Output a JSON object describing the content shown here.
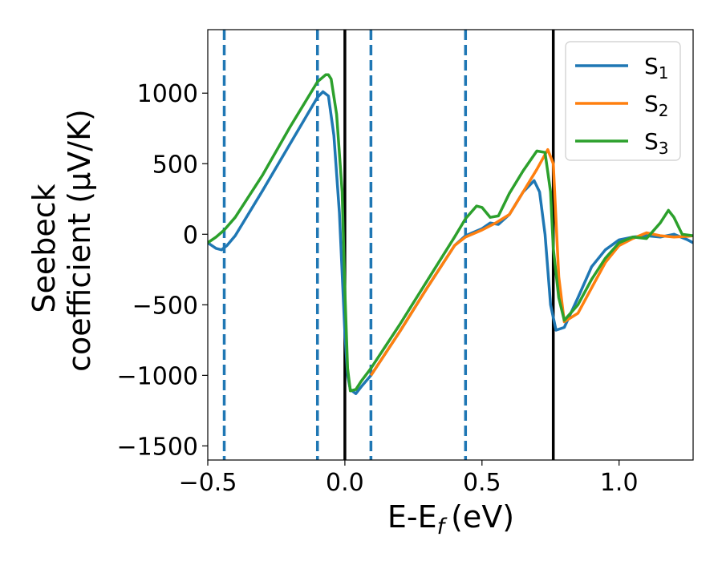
{
  "chart_data": {
    "type": "line",
    "title": "",
    "xlabel": "E-E",
    "xlabel_sub": "f",
    "xlabel_unit": "(eV)",
    "ylabel_line1": "Seebeck",
    "ylabel_line2": "coefficient  (μV/K)",
    "xlim": [
      -0.5,
      1.27
    ],
    "ylim": [
      -1600,
      1450
    ],
    "x_ticks": [
      -0.5,
      0.0,
      0.5,
      1.0
    ],
    "x_tick_labels": [
      "−0.5",
      "0.0",
      "0.5",
      "1.0"
    ],
    "y_ticks": [
      -1500,
      -1000,
      -500,
      0,
      500,
      1000
    ],
    "y_tick_labels": [
      "−1500",
      "−1000",
      "−500",
      "0",
      "500",
      "1000"
    ],
    "vlines_solid": [
      0.0,
      0.76
    ],
    "vlines_dashed": [
      -0.44,
      -0.1,
      0.095,
      0.44
    ],
    "legend": {
      "position": "top-right"
    },
    "series": [
      {
        "name": "S",
        "sub": "1",
        "color": "#1f77b4",
        "x": [
          -0.5,
          -0.47,
          -0.45,
          -0.43,
          -0.4,
          -0.3,
          -0.2,
          -0.1,
          -0.08,
          -0.06,
          -0.04,
          -0.02,
          0.0,
          0.01,
          0.02,
          0.04,
          0.06,
          0.095,
          0.2,
          0.3,
          0.4,
          0.44,
          0.5,
          0.53,
          0.56,
          0.6,
          0.65,
          0.69,
          0.71,
          0.73,
          0.75,
          0.77,
          0.8,
          0.85,
          0.9,
          0.95,
          1.0,
          1.05,
          1.1,
          1.15,
          1.2,
          1.25,
          1.27
        ],
        "y": [
          -60,
          -100,
          -110,
          -80,
          -10,
          310,
          640,
          970,
          1010,
          980,
          700,
          150,
          -700,
          -1000,
          -1100,
          -1130,
          -1080,
          -1000,
          -690,
          -380,
          -80,
          -10,
          40,
          80,
          70,
          140,
          300,
          380,
          300,
          0,
          -500,
          -680,
          -660,
          -450,
          -230,
          -110,
          -40,
          -20,
          -10,
          -20,
          0,
          -40,
          -60
        ]
      },
      {
        "name": "S",
        "sub": "2",
        "color": "#ff7f0e",
        "x": [
          0.095,
          0.2,
          0.3,
          0.4,
          0.44,
          0.5,
          0.55,
          0.6,
          0.65,
          0.7,
          0.74,
          0.76,
          0.78,
          0.8,
          0.85,
          0.9,
          0.95,
          1.0,
          1.05,
          1.1,
          1.15,
          1.2,
          1.25,
          1.27
        ],
        "y": [
          -1000,
          -690,
          -380,
          -80,
          -20,
          30,
          80,
          140,
          300,
          460,
          600,
          500,
          -300,
          -620,
          -560,
          -380,
          -200,
          -80,
          -30,
          10,
          -10,
          -20,
          -15,
          -10
        ]
      },
      {
        "name": "S",
        "sub": "3",
        "color": "#2ca02c",
        "x": [
          -0.5,
          -0.47,
          -0.44,
          -0.4,
          -0.3,
          -0.2,
          -0.1,
          -0.07,
          -0.06,
          -0.05,
          -0.03,
          -0.01,
          0.0,
          0.01,
          0.02,
          0.04,
          0.06,
          0.095,
          0.2,
          0.3,
          0.4,
          0.44,
          0.48,
          0.5,
          0.53,
          0.56,
          0.6,
          0.65,
          0.7,
          0.73,
          0.75,
          0.76,
          0.78,
          0.8,
          0.85,
          0.9,
          0.95,
          1.0,
          1.05,
          1.1,
          1.15,
          1.18,
          1.2,
          1.23,
          1.27
        ],
        "y": [
          -60,
          -20,
          30,
          120,
          420,
          760,
          1080,
          1130,
          1130,
          1100,
          850,
          300,
          -400,
          -950,
          -1110,
          -1100,
          -1040,
          -950,
          -640,
          -330,
          -20,
          110,
          200,
          190,
          120,
          130,
          290,
          450,
          590,
          580,
          300,
          -100,
          -450,
          -610,
          -500,
          -320,
          -170,
          -60,
          -20,
          -30,
          80,
          170,
          120,
          0,
          -10
        ]
      }
    ]
  }
}
